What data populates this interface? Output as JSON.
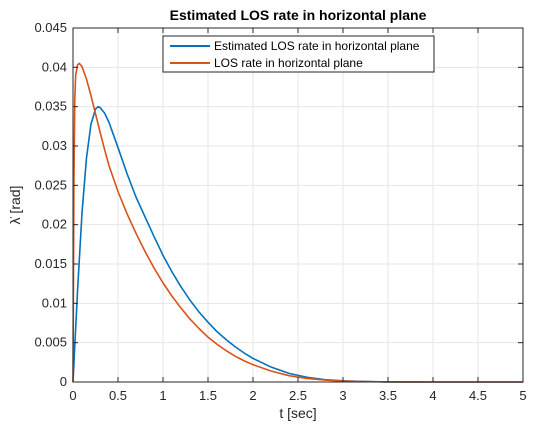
{
  "chart_data": {
    "type": "line",
    "title": "Estimated LOS rate in horizontal plane",
    "xlabel": "t [sec]",
    "ylabel": "λ̇ [rad]",
    "xlim": [
      0,
      5
    ],
    "ylim": [
      0,
      0.045
    ],
    "xticks": [
      0,
      0.5,
      1,
      1.5,
      2,
      2.5,
      3,
      3.5,
      4,
      4.5,
      5
    ],
    "yticks": [
      0,
      0.005,
      0.01,
      0.015,
      0.02,
      0.025,
      0.03,
      0.035,
      0.04,
      0.045
    ],
    "xtick_labels": [
      "0",
      "0.5",
      "1",
      "1.5",
      "2",
      "2.5",
      "3",
      "3.5",
      "4",
      "4.5",
      "5"
    ],
    "ytick_labels": [
      "0",
      "0.005",
      "0.01",
      "0.015",
      "0.02",
      "0.025",
      "0.03",
      "0.035",
      "0.04",
      "0.045"
    ],
    "grid": true,
    "legend_position": "top-right",
    "series": [
      {
        "name": "Estimated LOS rate in horizontal plane",
        "color": "#0072BD",
        "x": [
          0,
          0.05,
          0.1,
          0.15,
          0.2,
          0.25,
          0.28,
          0.3,
          0.35,
          0.4,
          0.5,
          0.6,
          0.7,
          0.8,
          0.9,
          1.0,
          1.1,
          1.2,
          1.3,
          1.4,
          1.5,
          1.6,
          1.7,
          1.8,
          1.9,
          2.0,
          2.2,
          2.4,
          2.6,
          2.8,
          3.0,
          3.2,
          3.4,
          3.6,
          3.8,
          4.0,
          4.5,
          5.0
        ],
        "y": [
          0,
          0.0115,
          0.0215,
          0.0285,
          0.0328,
          0.0347,
          0.035,
          0.0349,
          0.0342,
          0.033,
          0.0298,
          0.0265,
          0.0235,
          0.021,
          0.0185,
          0.0161,
          0.014,
          0.0121,
          0.0104,
          0.0089,
          0.0076,
          0.0064,
          0.0054,
          0.0045,
          0.0037,
          0.003,
          0.0019,
          0.0011,
          0.0006,
          0.0003,
          0.00015,
          7e-05,
          3e-05,
          1e-05,
          5e-06,
          0,
          0,
          0
        ]
      },
      {
        "name": "LOS rate in horizontal plane",
        "color": "#D95319",
        "x": [
          0,
          0.01,
          0.02,
          0.03,
          0.05,
          0.07,
          0.1,
          0.15,
          0.2,
          0.25,
          0.3,
          0.35,
          0.4,
          0.5,
          0.6,
          0.7,
          0.8,
          0.9,
          1.0,
          1.1,
          1.2,
          1.3,
          1.4,
          1.5,
          1.6,
          1.7,
          1.8,
          1.9,
          2.0,
          2.2,
          2.4,
          2.6,
          2.8,
          3.0,
          3.2,
          3.4,
          3.6,
          4.0,
          4.5,
          5.0
        ],
        "y": [
          0,
          0.025,
          0.036,
          0.039,
          0.0403,
          0.0405,
          0.0401,
          0.0385,
          0.0364,
          0.0341,
          0.0318,
          0.0296,
          0.0275,
          0.0242,
          0.0214,
          0.0189,
          0.0166,
          0.0145,
          0.0126,
          0.0109,
          0.0094,
          0.008,
          0.0068,
          0.0057,
          0.0048,
          0.004,
          0.0033,
          0.0027,
          0.0022,
          0.0014,
          0.0008,
          0.00045,
          0.00025,
          0.00012,
          6e-05,
          3e-05,
          1e-05,
          0,
          0,
          0
        ]
      }
    ]
  }
}
